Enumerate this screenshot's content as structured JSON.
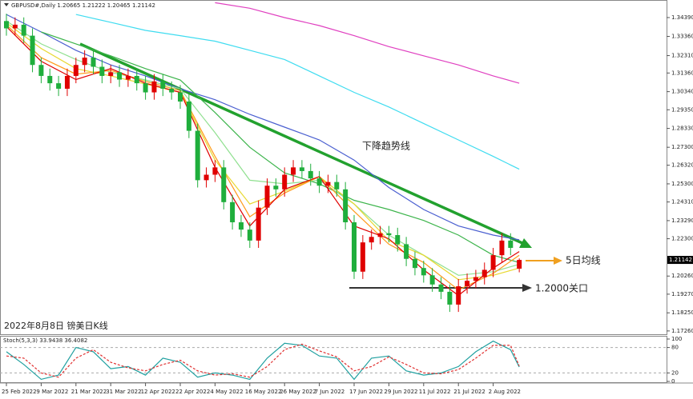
{
  "chart_data": [
    {
      "type": "candlestick",
      "title": "2022年8月8日 镑美日K线",
      "symbol_info": "GBPUSD#,Daily  1.20665 1.21222 1.20465 1.21142",
      "categories": [
        "25 Feb 2022",
        null,
        null,
        null,
        "9 Mar 2022",
        null,
        null,
        null,
        "21 Mar 2022",
        null,
        null,
        null,
        "31 Mar 2022",
        null,
        null,
        null,
        "12 Apr 2022",
        null,
        null,
        null,
        "22 Apr 2022",
        null,
        null,
        null,
        "4 May 2022",
        null,
        null,
        null,
        "16 May 2022",
        null,
        null,
        null,
        "26 May 2022",
        null,
        null,
        null,
        "7 Jun 2022",
        null,
        null,
        null,
        "17 Jun 2022",
        null,
        null,
        null,
        "29 Jun 2022",
        null,
        null,
        null,
        "11 Jul 2022",
        null,
        null,
        null,
        "21 Jul 2022",
        null,
        null,
        null,
        "2 Aug 2022",
        null,
        null,
        null
      ],
      "open": [
        1.342,
        1.338,
        1.34,
        1.334,
        1.318,
        1.312,
        1.308,
        1.305,
        1.312,
        1.318,
        1.322,
        1.317,
        1.312,
        1.314,
        1.31,
        1.312,
        1.308,
        1.303,
        1.309,
        1.305,
        1.303,
        1.298,
        1.282,
        1.255,
        1.258,
        1.262,
        1.243,
        1.232,
        1.228,
        1.222,
        1.24,
        1.252,
        1.25,
        1.258,
        1.262,
        1.26,
        1.256,
        1.252,
        1.254,
        1.25,
        1.232,
        1.205,
        1.221,
        1.224,
        1.226,
        1.225,
        1.22,
        1.212,
        1.207,
        1.203,
        1.198,
        1.194,
        1.187,
        1.197,
        1.2,
        1.202,
        1.206,
        1.214,
        1.222,
        1.20665
      ],
      "high": [
        1.346,
        1.344,
        1.344,
        1.338,
        1.322,
        1.316,
        1.312,
        1.316,
        1.322,
        1.326,
        1.326,
        1.321,
        1.318,
        1.318,
        1.316,
        1.316,
        1.312,
        1.313,
        1.313,
        1.309,
        1.307,
        1.302,
        1.286,
        1.262,
        1.266,
        1.266,
        1.247,
        1.236,
        1.232,
        1.244,
        1.256,
        1.256,
        1.262,
        1.266,
        1.266,
        1.264,
        1.26,
        1.258,
        1.258,
        1.254,
        1.236,
        1.225,
        1.228,
        1.23,
        1.23,
        1.229,
        1.224,
        1.216,
        1.211,
        1.207,
        1.202,
        1.198,
        1.201,
        1.204,
        1.206,
        1.21,
        1.218,
        1.226,
        1.226,
        1.21222
      ],
      "low": [
        1.334,
        1.334,
        1.33,
        1.314,
        1.308,
        1.304,
        1.301,
        1.301,
        1.308,
        1.314,
        1.313,
        1.308,
        1.308,
        1.306,
        1.306,
        1.304,
        1.299,
        1.299,
        1.301,
        1.299,
        1.294,
        1.278,
        1.251,
        1.251,
        1.254,
        1.239,
        1.228,
        1.224,
        1.218,
        1.218,
        1.236,
        1.246,
        1.246,
        1.254,
        1.256,
        1.252,
        1.248,
        1.248,
        1.246,
        1.228,
        1.201,
        1.201,
        1.217,
        1.22,
        1.221,
        1.216,
        1.208,
        1.203,
        1.199,
        1.194,
        1.19,
        1.183,
        1.183,
        1.193,
        1.196,
        1.198,
        1.202,
        1.21,
        1.214,
        1.20465
      ],
      "close": [
        1.338,
        1.34,
        1.334,
        1.318,
        1.312,
        1.308,
        1.305,
        1.312,
        1.318,
        1.322,
        1.317,
        1.312,
        1.314,
        1.31,
        1.312,
        1.308,
        1.303,
        1.309,
        1.305,
        1.303,
        1.298,
        1.282,
        1.255,
        1.258,
        1.262,
        1.243,
        1.232,
        1.228,
        1.222,
        1.24,
        1.252,
        1.25,
        1.258,
        1.262,
        1.26,
        1.256,
        1.252,
        1.254,
        1.25,
        1.232,
        1.205,
        1.221,
        1.224,
        1.226,
        1.225,
        1.22,
        1.212,
        1.207,
        1.203,
        1.198,
        1.194,
        1.187,
        1.197,
        1.2,
        1.202,
        1.206,
        1.214,
        1.222,
        1.218,
        1.21142
      ],
      "up_color": "#e00000",
      "down_color": "#1fae3c",
      "ylim": [
        1.1708,
        1.3535
      ],
      "yticks": [
        {
          "value": 1.3439,
          "label": "1.34390"
        },
        {
          "value": 1.3336,
          "label": "1.33360"
        },
        {
          "value": 1.3231,
          "label": "1.32310"
        },
        {
          "value": 1.3136,
          "label": "1.31360"
        },
        {
          "value": 1.3034,
          "label": "1.30340"
        },
        {
          "value": 1.2935,
          "label": "1.29350"
        },
        {
          "value": 1.2833,
          "label": "1.28330"
        },
        {
          "value": 1.273,
          "label": "1.27300"
        },
        {
          "value": 1.2632,
          "label": "1.26320"
        },
        {
          "value": 1.253,
          "label": "1.25300"
        },
        {
          "value": 1.2431,
          "label": "1.24310"
        },
        {
          "value": 1.2329,
          "label": "1.23290"
        },
        {
          "value": 1.223,
          "label": "1.22300"
        },
        {
          "value": 1.2026,
          "label": "1.20260"
        },
        {
          "value": 1.1927,
          "label": "1.19270"
        },
        {
          "value": 1.1825,
          "label": "1.18250"
        },
        {
          "value": 1.1726,
          "label": "1.17260"
        }
      ],
      "price_marker": {
        "value": 1.21142,
        "label": "1.21142"
      },
      "indicators": {
        "x": [
          0,
          4,
          8,
          12,
          16,
          20,
          24,
          28,
          32,
          36,
          40,
          44,
          48,
          52,
          56,
          59
        ],
        "series": [
          {
            "color": "#e040c0",
            "values": [
              null,
              null,
              null,
              null,
              null,
              null,
              1.352,
              1.349,
              1.3439,
              1.3395,
              1.334,
              1.328,
              1.323,
              1.318,
              1.312,
              1.308
            ]
          },
          {
            "color": "#3fdcf0",
            "values": [
              null,
              null,
              1.3456,
              1.3413,
              1.3369,
              1.334,
              1.331,
              1.326,
              1.321,
              1.312,
              1.303,
              1.295,
              1.286,
              1.277,
              1.268,
              1.261
            ]
          },
          {
            "color": "#4a5fd0",
            "values": [
              1.3456,
              1.336,
              1.326,
              1.318,
              1.312,
              1.305,
              1.299,
              1.291,
              1.284,
              1.277,
              1.266,
              1.251,
              1.239,
              1.23,
              1.225,
              1.2224
            ]
          },
          {
            "color": "#3cb44b",
            "values": [
              null,
              1.336,
              1.3295,
              1.323,
              1.316,
              1.3098,
              1.292,
              1.273,
              1.259,
              1.253,
              1.244,
              1.239,
              1.233,
              1.225,
              1.214,
              1.21
            ]
          },
          {
            "color": "#90e090",
            "values": [
              1.342,
              1.3295,
              1.321,
              1.314,
              1.3098,
              1.305,
              1.281,
              1.255,
              1.253,
              1.255,
              1.242,
              1.225,
              1.214,
              1.203,
              1.205,
              1.209
            ]
          },
          {
            "color": "#e8d830",
            "values": [
              1.341,
              1.327,
              1.316,
              1.312,
              1.3076,
              1.303,
              1.266,
              1.242,
              1.249,
              1.257,
              1.242,
              1.222,
              1.214,
              1.2006,
              1.203,
              1.207
            ]
          },
          {
            "color": "#ff9a1a",
            "values": [
              1.34,
              1.322,
              1.313,
              1.315,
              1.309,
              1.304,
              1.268,
              1.235,
              1.248,
              1.257,
              1.238,
              1.22,
              1.21,
              1.195,
              1.204,
              1.214
            ]
          },
          {
            "color": "#e00000",
            "values": [
              1.339,
              1.32,
              1.31,
              1.316,
              1.308,
              1.303,
              1.262,
              1.23,
              1.25,
              1.257,
              1.23,
              1.223,
              1.206,
              1.192,
              1.207,
              1.216
            ]
          }
        ]
      },
      "annotations": [
        "下降趋势线",
        "5日均线",
        "1.2000关口"
      ]
    },
    {
      "type": "stochastic",
      "title": "Stoch(5,3,3) 33.9438 36.4082",
      "x": [
        0,
        2,
        4,
        6,
        8,
        10,
        12,
        14,
        16,
        18,
        20,
        22,
        24,
        26,
        28,
        30,
        32,
        34,
        36,
        38,
        40,
        42,
        44,
        46,
        48,
        50,
        52,
        54,
        56,
        58,
        59
      ],
      "series": [
        {
          "color": "#20a0a0",
          "dash": false,
          "values": [
            70,
            40,
            5,
            15,
            80,
            70,
            30,
            35,
            15,
            55,
            45,
            10,
            20,
            15,
            5,
            55,
            90,
            85,
            60,
            55,
            5,
            55,
            60,
            25,
            15,
            20,
            35,
            70,
            95,
            75,
            33.9438
          ]
        },
        {
          "color": "#e03030",
          "dash": true,
          "values": [
            60,
            55,
            20,
            10,
            55,
            75,
            45,
            32,
            25,
            40,
            50,
            25,
            15,
            18,
            10,
            35,
            75,
            88,
            72,
            58,
            25,
            35,
            58,
            40,
            20,
            18,
            28,
            55,
            85,
            85,
            36.4082
          ]
        }
      ],
      "ylim": [
        0,
        100
      ],
      "yticks": [
        0,
        20,
        80,
        100
      ]
    }
  ]
}
